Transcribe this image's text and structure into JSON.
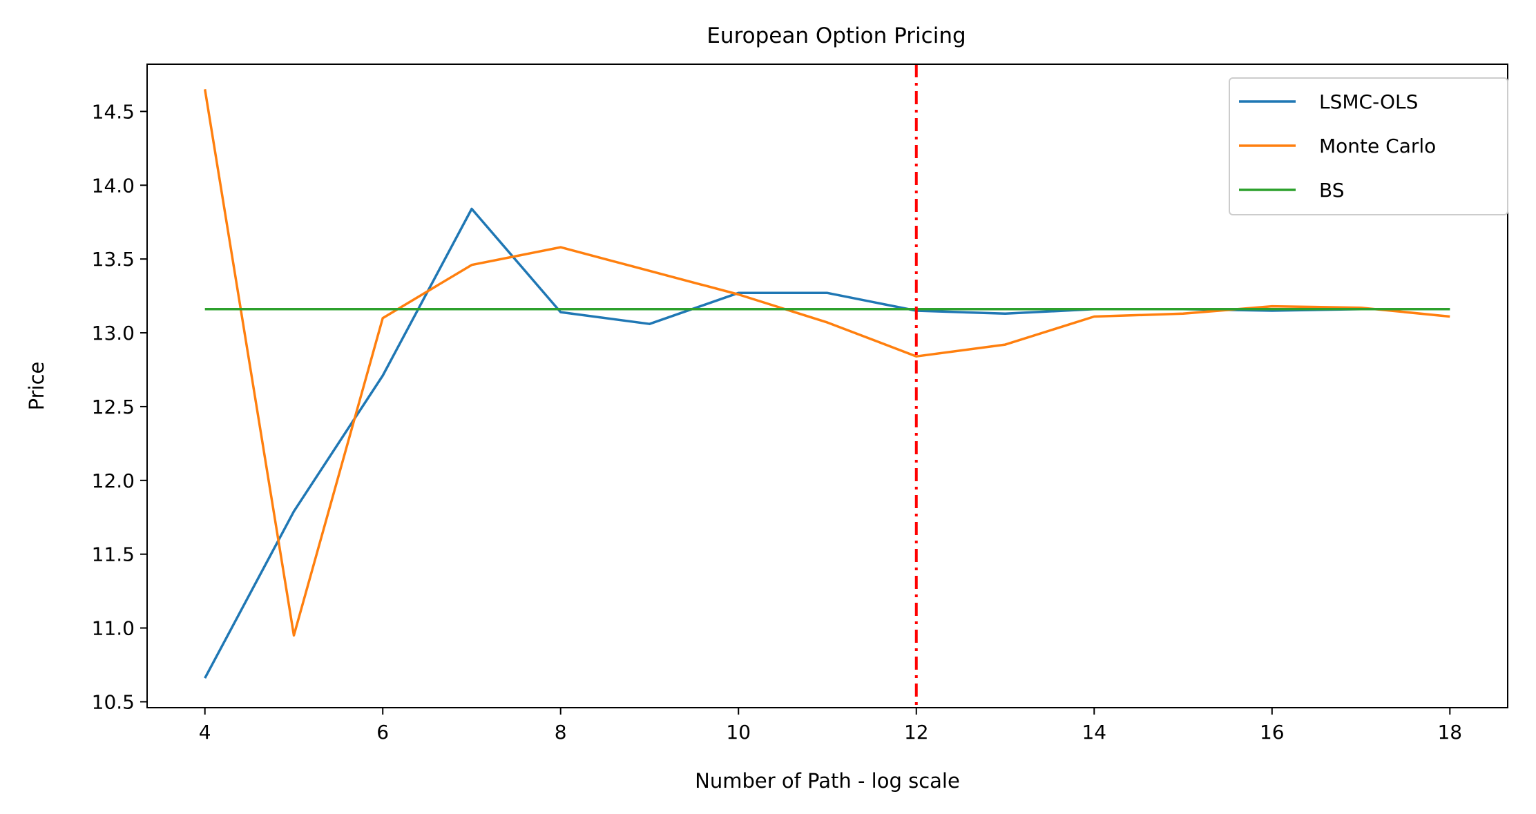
{
  "chart_data": {
    "type": "line",
    "title": "European Option Pricing",
    "xlabel": "Number of Path - log scale",
    "ylabel": "Price",
    "xlim": [
      3.35,
      18.65
    ],
    "ylim": [
      10.46,
      14.82
    ],
    "xticks": [
      4,
      6,
      8,
      10,
      12,
      14,
      16,
      18
    ],
    "yticks": [
      10.5,
      11.0,
      11.5,
      12.0,
      12.5,
      13.0,
      13.5,
      14.0,
      14.5
    ],
    "x": [
      4,
      5,
      6,
      7,
      8,
      9,
      10,
      11,
      12,
      13,
      14,
      15,
      16,
      17,
      18
    ],
    "series": [
      {
        "name": "LSMC-OLS",
        "color": "#1f77b4",
        "values": [
          10.66,
          11.79,
          12.71,
          13.84,
          13.14,
          13.06,
          13.27,
          13.27,
          13.15,
          13.13,
          13.16,
          13.16,
          13.15,
          13.16,
          13.16
        ]
      },
      {
        "name": "Monte Carlo",
        "color": "#ff7f0e",
        "values": [
          14.65,
          10.95,
          13.1,
          13.46,
          13.58,
          13.42,
          13.26,
          13.07,
          12.84,
          12.92,
          13.11,
          13.13,
          13.18,
          13.17,
          13.11
        ]
      },
      {
        "name": "BS",
        "color": "#2ca02c",
        "values": [
          13.16,
          13.16,
          13.16,
          13.16,
          13.16,
          13.16,
          13.16,
          13.16,
          13.16,
          13.16,
          13.16,
          13.16,
          13.16,
          13.16,
          13.16
        ]
      }
    ],
    "annotations": [
      {
        "type": "vline",
        "x": 12,
        "color": "#ff0000",
        "style": "dash-dot"
      }
    ],
    "legend": {
      "position": "top-right"
    },
    "grid": false
  }
}
